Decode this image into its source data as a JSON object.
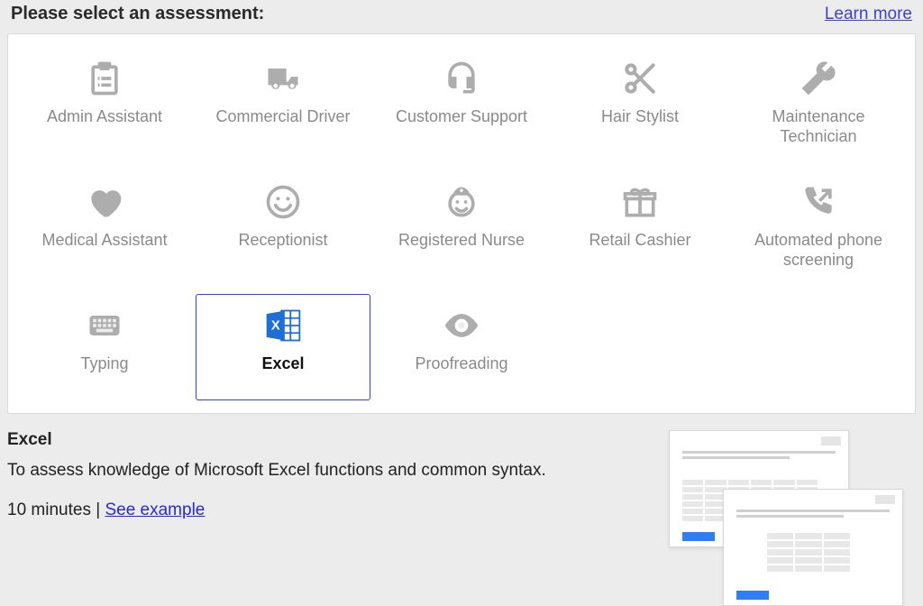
{
  "header": {
    "title": "Please select an assessment:",
    "learn_more": "Learn more"
  },
  "assessments": {
    "items": [
      {
        "id": "admin-assistant",
        "label": "Admin Assistant",
        "icon": "clipboard",
        "selected": false
      },
      {
        "id": "commercial-driver",
        "label": "Commercial Driver",
        "icon": "truck",
        "selected": false
      },
      {
        "id": "customer-support",
        "label": "Customer Support",
        "icon": "headset",
        "selected": false
      },
      {
        "id": "hair-stylist",
        "label": "Hair Stylist",
        "icon": "scissors",
        "selected": false
      },
      {
        "id": "maintenance-technician",
        "label": "Maintenance Technician",
        "icon": "wrench",
        "selected": false
      },
      {
        "id": "medical-assistant",
        "label": "Medical Assistant",
        "icon": "heart",
        "selected": false
      },
      {
        "id": "receptionist",
        "label": "Receptionist",
        "icon": "smile",
        "selected": false
      },
      {
        "id": "registered-nurse",
        "label": "Registered Nurse",
        "icon": "nurse",
        "selected": false
      },
      {
        "id": "retail-cashier",
        "label": "Retail Cashier",
        "icon": "gift",
        "selected": false
      },
      {
        "id": "automated-phone-screening",
        "label": "Automated phone screening",
        "icon": "phone-out",
        "selected": false
      },
      {
        "id": "typing",
        "label": "Typing",
        "icon": "keyboard",
        "selected": false
      },
      {
        "id": "excel",
        "label": "Excel",
        "icon": "excel",
        "selected": true
      },
      {
        "id": "proofreading",
        "label": "Proofreading",
        "icon": "eye",
        "selected": false
      }
    ]
  },
  "detail": {
    "title": "Excel",
    "description": "To assess knowledge of Microsoft Excel functions and common syntax.",
    "duration": "10 minutes",
    "separator": " | ",
    "see_example": "See example"
  },
  "colors": {
    "page_bg": "#ececec",
    "card_bg": "#ffffff",
    "card_border": "#d9d9d9",
    "selected_border": "#2c3fff",
    "icon_inactive": "#adadad",
    "label_inactive": "#8a8a8a",
    "label_selected": "#111111",
    "link_color": "#3f3fd8",
    "excel_blue": "#1f6ed4"
  }
}
